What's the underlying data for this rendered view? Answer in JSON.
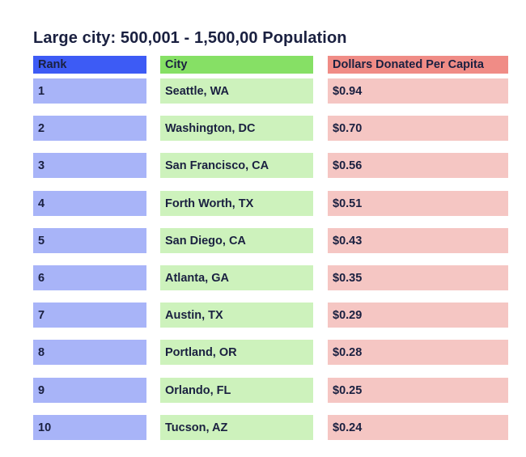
{
  "chart_data": {
    "type": "table",
    "title": "Large city: 500,001 - 1,500,00 Population",
    "columns": [
      "Rank",
      "City",
      "Dollars Donated Per Capita"
    ],
    "rows": [
      {
        "rank": "1",
        "city": "Seattle, WA",
        "value": "$0.94"
      },
      {
        "rank": "2",
        "city": "Washington, DC",
        "value": "$0.70"
      },
      {
        "rank": "3",
        "city": "San Francisco, CA",
        "value": "$0.56"
      },
      {
        "rank": "4",
        "city": "Forth Worth, TX",
        "value": "$0.51"
      },
      {
        "rank": "5",
        "city": "San Diego, CA",
        "value": "$0.43"
      },
      {
        "rank": "6",
        "city": "Atlanta, GA",
        "value": "$0.35"
      },
      {
        "rank": "7",
        "city": "Austin, TX",
        "value": "$0.29"
      },
      {
        "rank": "8",
        "city": "Portland, OR",
        "value": "$0.28"
      },
      {
        "rank": "9",
        "city": "Orlando, FL",
        "value": "$0.25"
      },
      {
        "rank": "10",
        "city": "Tucson, AZ",
        "value": "$0.24"
      }
    ],
    "colors": {
      "rank_header": "#3d5bf5",
      "rank_cell": "#a8b4f8",
      "city_header": "#86e065",
      "city_cell": "#cdf2bc",
      "value_header": "#f08c86",
      "value_cell": "#f5c6c3",
      "text": "#1a2040"
    }
  }
}
